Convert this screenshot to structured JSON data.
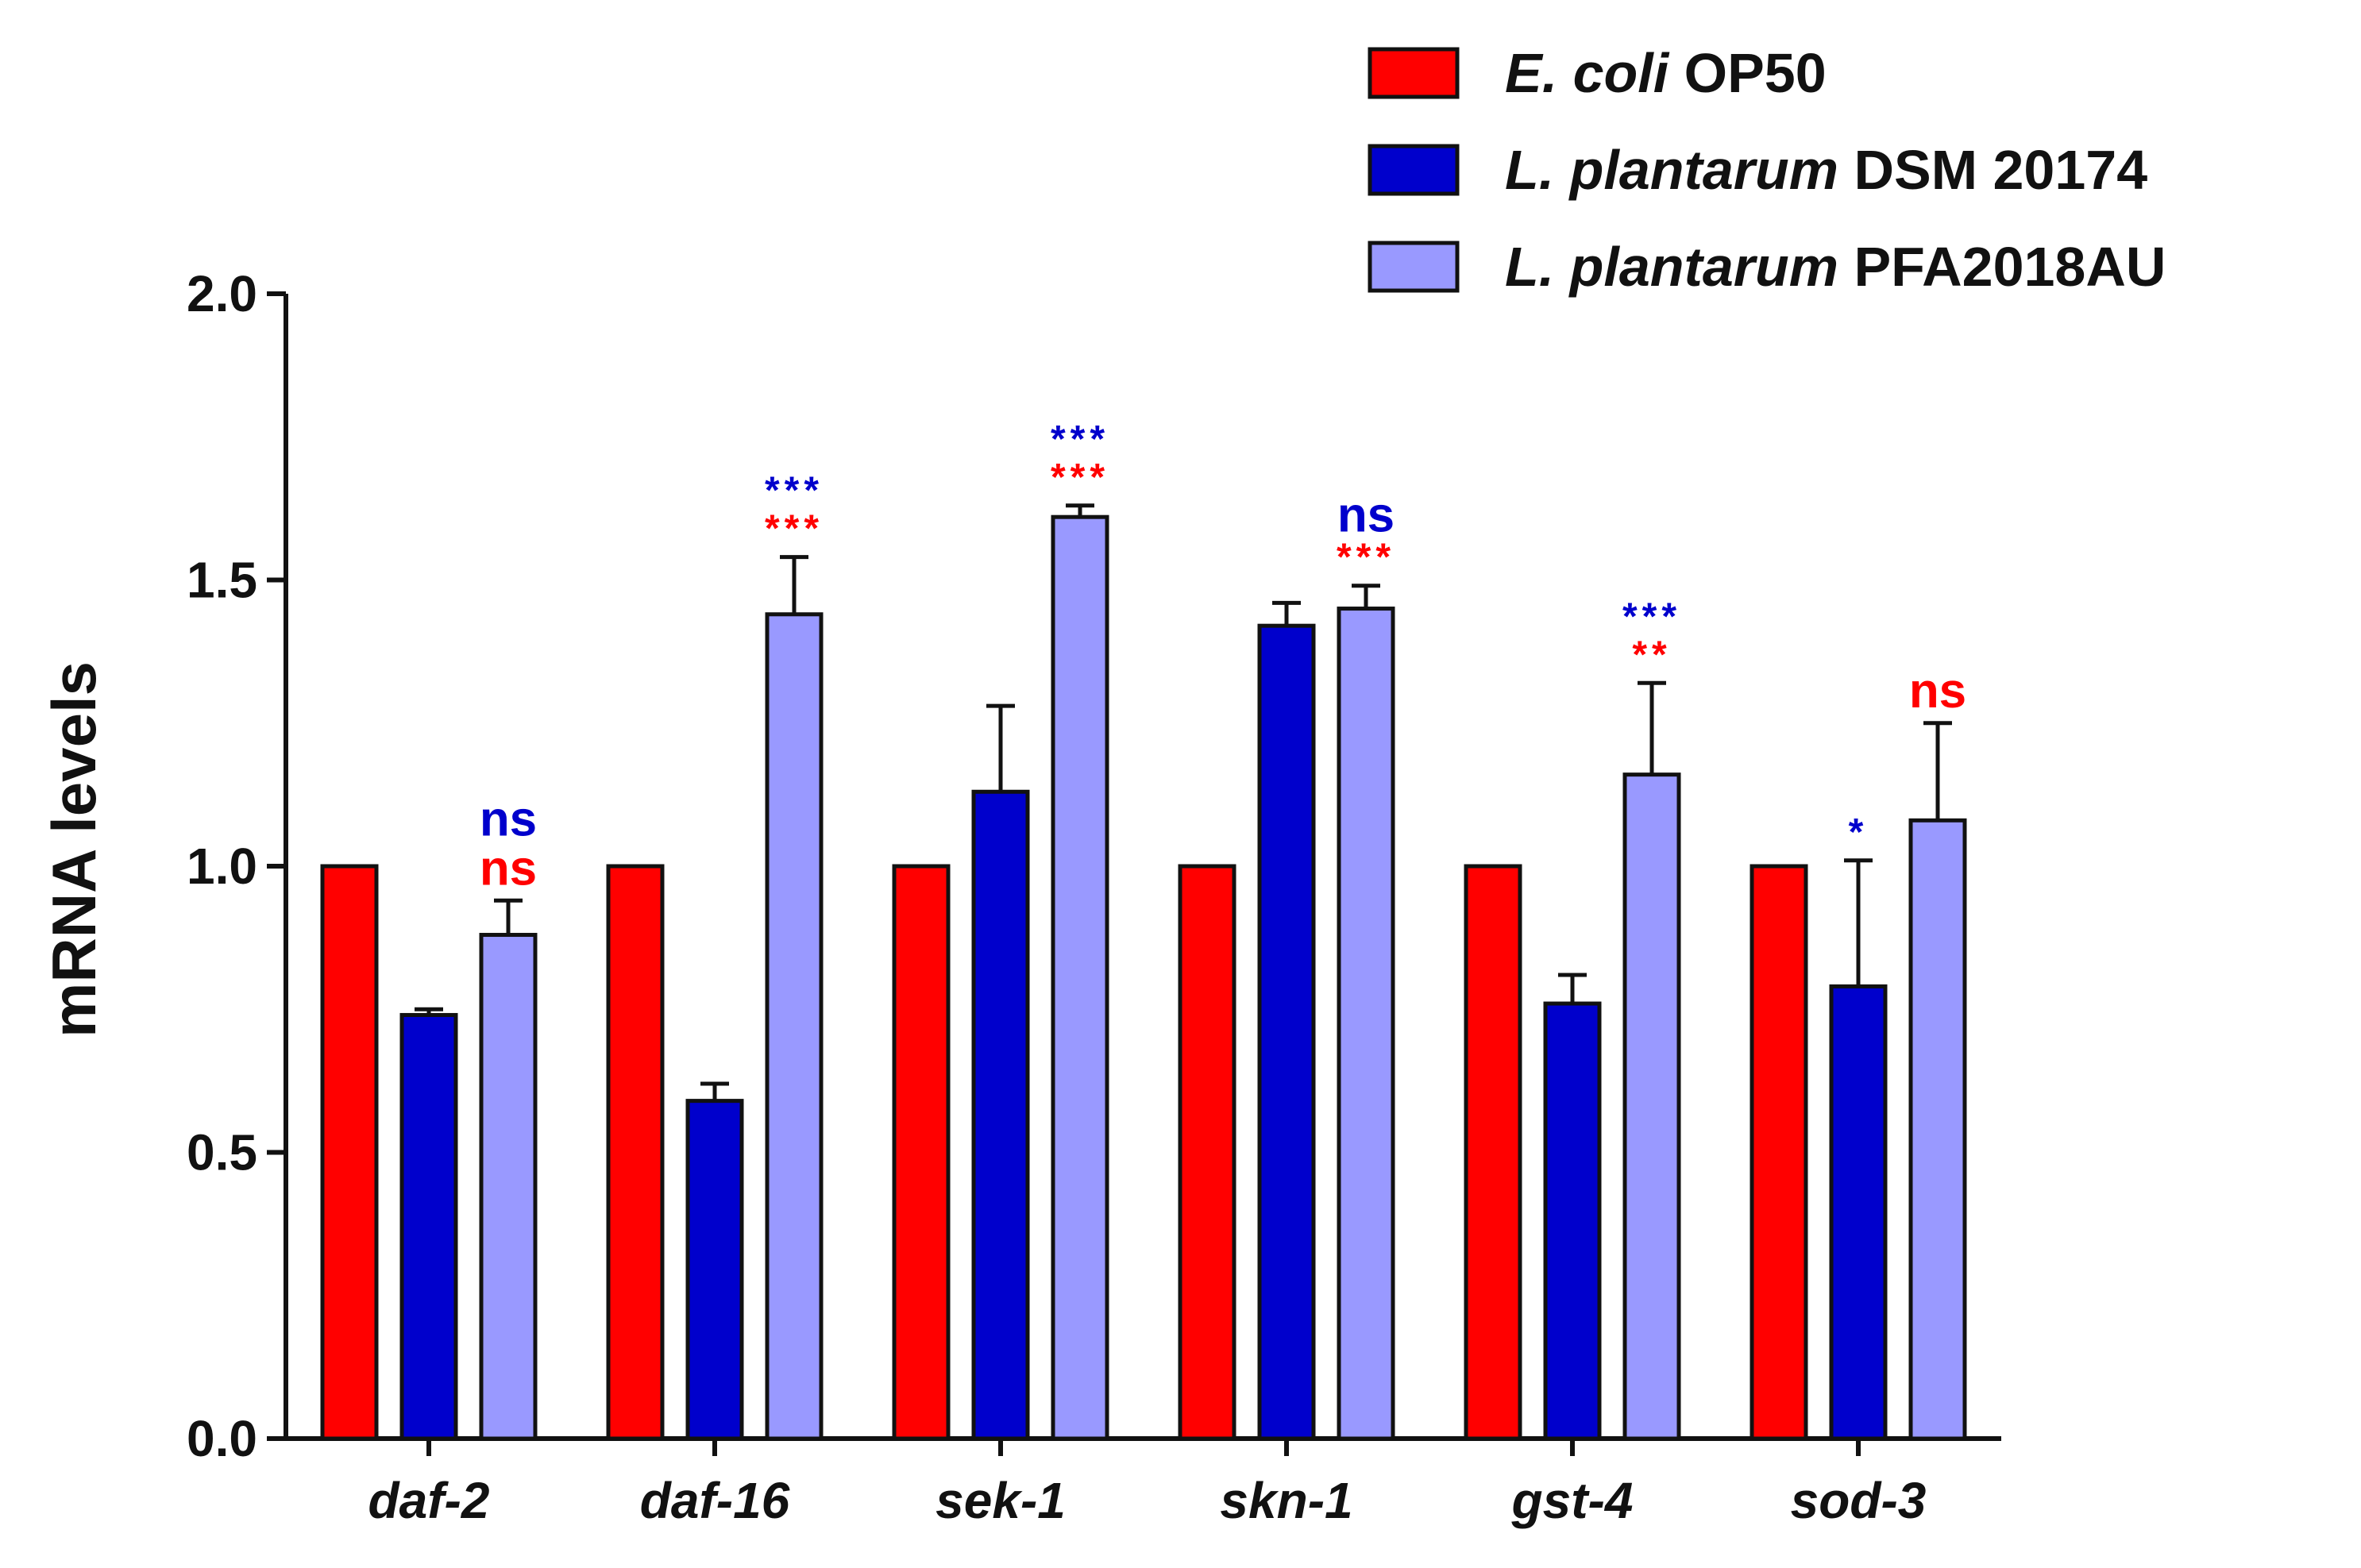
{
  "chart_data": {
    "type": "bar",
    "ylabel": "mRNA levels",
    "xlabel": "",
    "ylim": [
      0,
      2.0
    ],
    "yticks": [
      "0.0",
      "0.5",
      "1.0",
      "1.5",
      "2.0"
    ],
    "yticks_values": [
      0,
      0.5,
      1.0,
      1.5,
      2.0
    ],
    "categories": [
      "daf-2",
      "daf-16",
      "sek-1",
      "skn-1",
      "gst-4",
      "sod-3"
    ],
    "legend_position": "top-right",
    "series": [
      {
        "name": "E. coli OP50",
        "name_italic": "E. coli",
        "name_plain": " OP50",
        "color": "#ff0000",
        "values": [
          1.0,
          1.0,
          1.0,
          1.0,
          1.0,
          1.0
        ],
        "errors": [
          0,
          0,
          0,
          0,
          0,
          0
        ]
      },
      {
        "name": "L. plantarum DSM 20174",
        "name_italic": "L. plantarum",
        "name_plain": " DSM 20174",
        "color": "#0000cc",
        "values": [
          0.74,
          0.59,
          1.13,
          1.42,
          0.76,
          0.79
        ],
        "errors": [
          0.01,
          0.03,
          0.15,
          0.04,
          0.05,
          0.22
        ]
      },
      {
        "name": "L. plantarum PFA2018AU",
        "name_italic": "L. plantarum",
        "name_plain": " PFA2018AU",
        "color": "#9999ff",
        "values": [
          0.88,
          1.44,
          1.61,
          1.45,
          1.16,
          1.08
        ],
        "errors": [
          0.06,
          0.1,
          0.02,
          0.04,
          0.16,
          0.17
        ]
      }
    ],
    "annotations": [
      {
        "category": 0,
        "series": 2,
        "blue": "ns",
        "red": "ns"
      },
      {
        "category": 1,
        "series": 2,
        "blue": "***",
        "red": "***"
      },
      {
        "category": 2,
        "series": 2,
        "blue": "***",
        "red": "***"
      },
      {
        "category": 3,
        "series": 2,
        "blue": "ns",
        "red": "***"
      },
      {
        "category": 4,
        "series": 2,
        "blue": "***",
        "red": "**"
      },
      {
        "category": 5,
        "series": 1,
        "blue": "*",
        "red": ""
      },
      {
        "category": 5,
        "series": 2,
        "blue": "",
        "red": "ns"
      }
    ],
    "annotation_colors": {
      "blue": "#0000cc",
      "red": "#ff0000"
    }
  }
}
